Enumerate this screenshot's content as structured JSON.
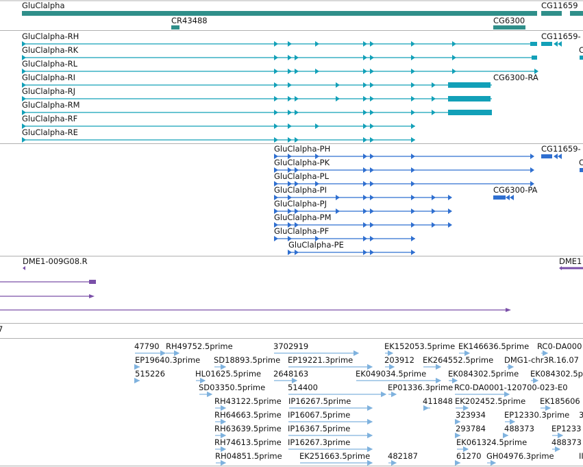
{
  "colors": {
    "gene": "#2f8f8a",
    "transcriptA": "#12a0b8",
    "transcriptB": "#2f6fd0",
    "est": "#7a4fa8",
    "cdna": "#7fb2de",
    "divider": "#b0b0b0"
  },
  "tracks": {
    "genes": {
      "items": [
        {
          "label": "GluClalpha"
        },
        {
          "label": "CR43488"
        },
        {
          "label": "CG6300"
        },
        {
          "label": "CG11659"
        }
      ]
    },
    "transcriptsA": {
      "items": [
        {
          "label": "GluClalpha-RH"
        },
        {
          "label": "GluClalpha-RK"
        },
        {
          "label": "GluClalpha-RL"
        },
        {
          "label": "GluClalpha-RI"
        },
        {
          "label": "GluClalpha-RJ"
        },
        {
          "label": "GluClalpha-RM"
        },
        {
          "label": "GluClalpha-RF"
        },
        {
          "label": "GluClalpha-RE"
        },
        {
          "label": "CG11659-"
        },
        {
          "label": "CG6300-RA"
        },
        {
          "label": "C"
        }
      ]
    },
    "transcriptsB": {
      "items": [
        {
          "label": "GluClalpha-PH"
        },
        {
          "label": "GluClalpha-PK"
        },
        {
          "label": "GluClalpha-PL"
        },
        {
          "label": "GluClalpha-PI"
        },
        {
          "label": "GluClalpha-PJ"
        },
        {
          "label": "GluClalpha-PM"
        },
        {
          "label": "GluClalpha-PF"
        },
        {
          "label": "GluClalpha-PE"
        },
        {
          "label": "CG11659-"
        },
        {
          "label": "CG6300-PA"
        },
        {
          "label": "C"
        }
      ]
    },
    "est": {
      "items": [
        {
          "label": "DME1-009G08.R"
        },
        {
          "label": "DME1"
        }
      ]
    },
    "mini": {
      "items": [
        {
          "label": "7"
        }
      ]
    },
    "cdna": {
      "rows": [
        [
          "47790",
          "RH49752.5prime",
          "3702919",
          "EK152053.5prime",
          "EK146636.5prime",
          "RC0-DA000"
        ],
        [
          "EP19640.3prime",
          "SD18893.5prime",
          "EP19221.3prime",
          "203912",
          "EK264552.5prime",
          "DMG1-chr3R.16.07"
        ],
        [
          "515226",
          "HL01625.5prime",
          "2648163",
          "EK049034.5prime",
          "EK084302.5prime",
          "EK084302.5p"
        ],
        [
          "SD03350.5prime",
          "514400",
          "EP01336.3prime",
          "RC0-DA0001-120700-023-E0"
        ],
        [
          "RH43122.5prime",
          "IP16267.5prime",
          "411848",
          "EK202452.5prime",
          "EK185606"
        ],
        [
          "RH64663.5prime",
          "IP16067.5prime",
          "323934",
          "EP12330.3prime",
          "3"
        ],
        [
          "RH63639.5prime",
          "IP16367.5prime",
          "293784",
          "488373",
          "EP1233"
        ],
        [
          "RH74613.5prime",
          "IP16267.3prime",
          "EK061324.5prime",
          "488373"
        ],
        [
          "RH04851.5prime",
          "EK251663.5prime",
          "482187",
          "61270",
          "GH04976.3prime",
          "II"
        ]
      ]
    }
  }
}
